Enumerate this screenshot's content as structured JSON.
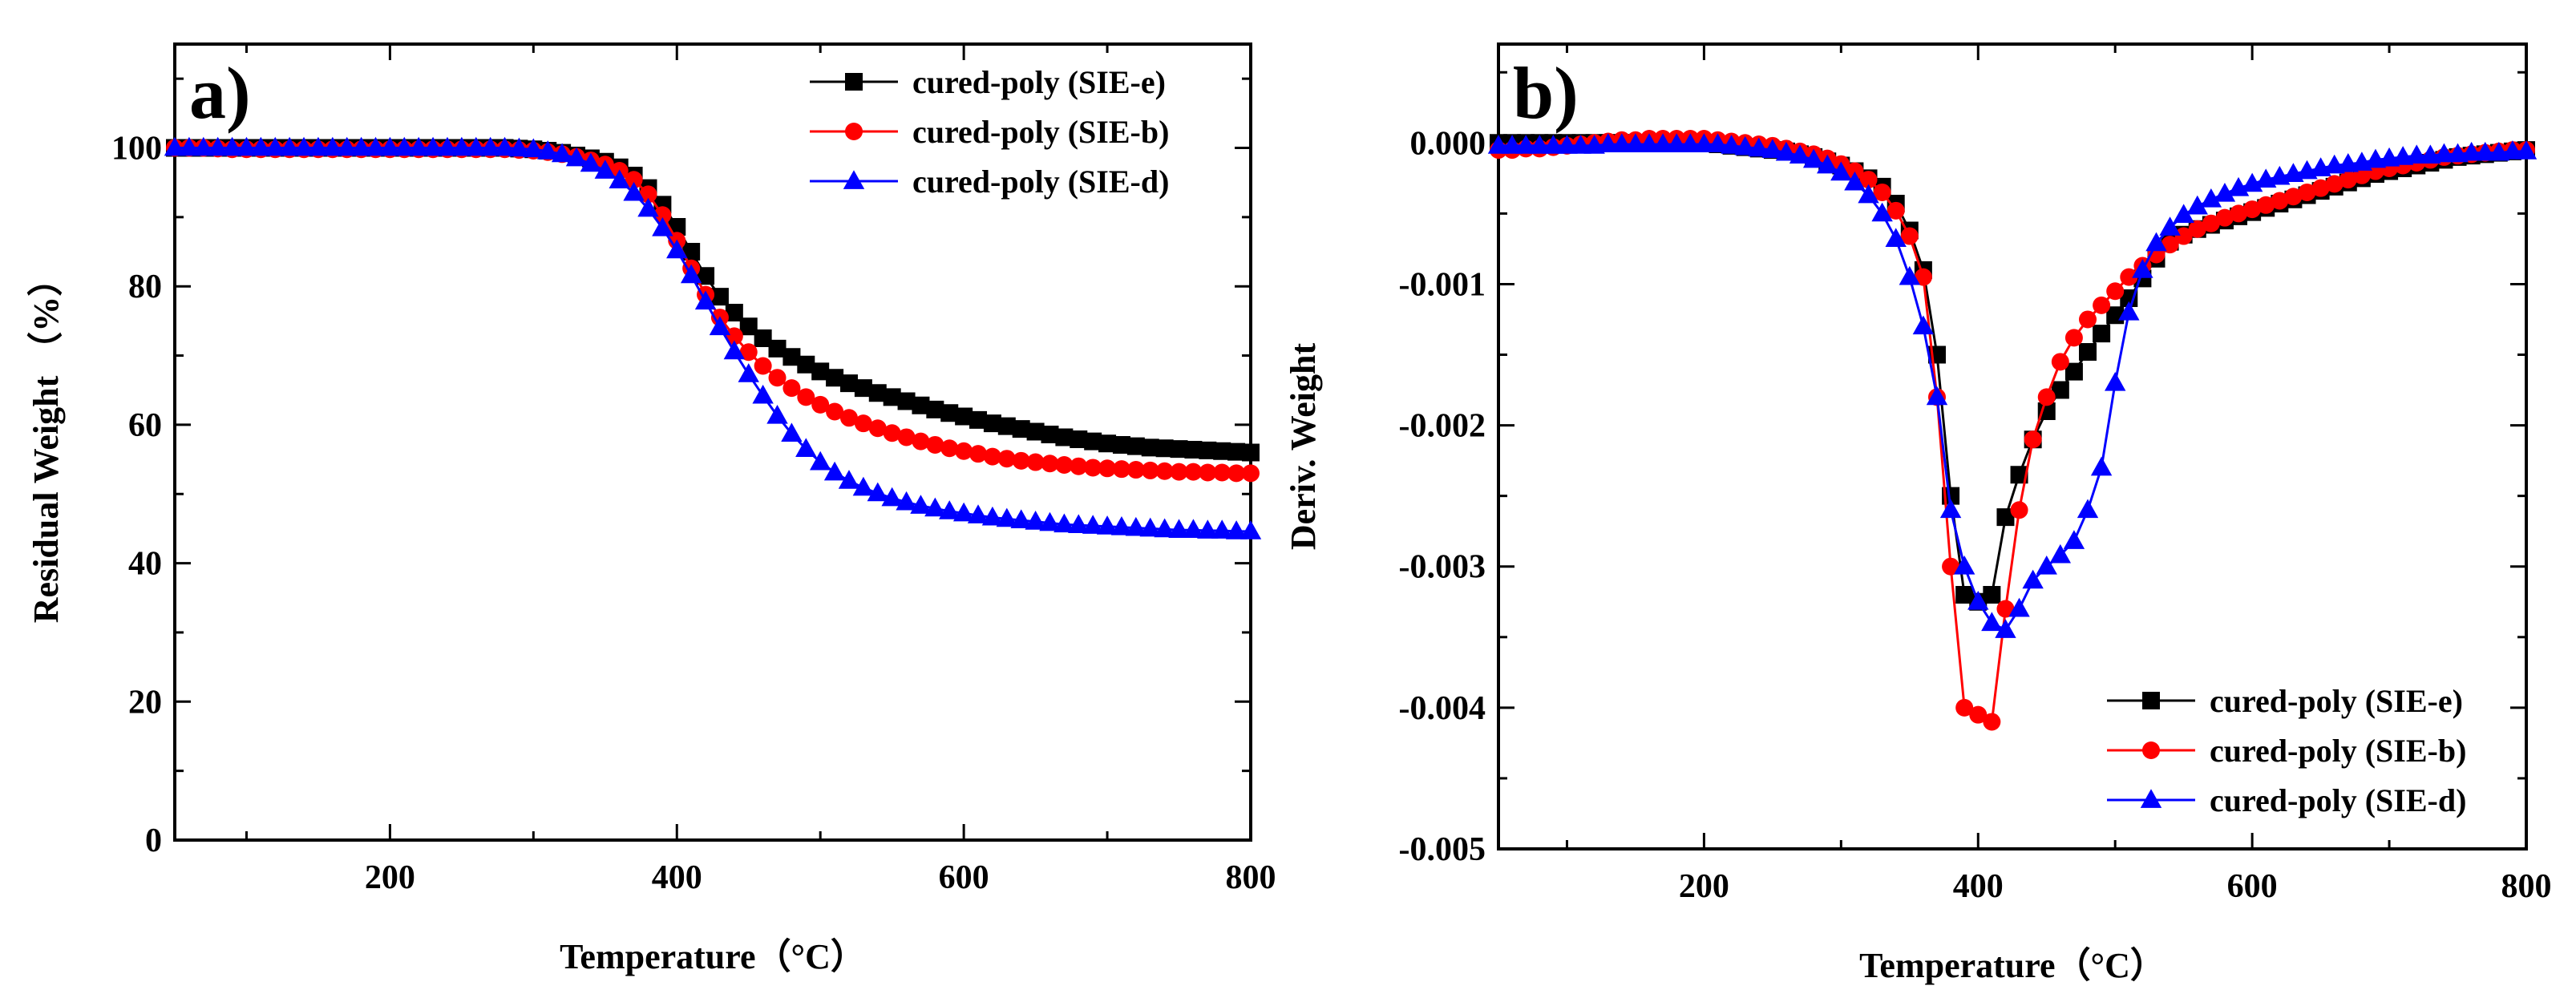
{
  "colors": {
    "black": "#000000",
    "red": "#ff0000",
    "blue": "#0000ff"
  },
  "chart_data": [
    {
      "type": "line",
      "panel_label": "a)",
      "xlabel": "Temperature（°C）",
      "ylabel": "Residual Weight （%）",
      "xlim": [
        50,
        800
      ],
      "ylim": [
        0,
        115
      ],
      "xticks": [
        200,
        400,
        600,
        800
      ],
      "yticks": [
        0,
        20,
        40,
        60,
        80,
        100
      ],
      "legend_position": "top-right",
      "x": [
        50,
        60,
        70,
        80,
        90,
        100,
        110,
        120,
        130,
        140,
        150,
        160,
        170,
        180,
        190,
        200,
        210,
        220,
        230,
        240,
        250,
        260,
        270,
        280,
        290,
        300,
        310,
        320,
        330,
        340,
        350,
        360,
        370,
        380,
        390,
        400,
        410,
        420,
        430,
        440,
        450,
        460,
        470,
        480,
        490,
        500,
        510,
        520,
        530,
        540,
        550,
        560,
        570,
        580,
        590,
        600,
        610,
        620,
        630,
        640,
        650,
        660,
        670,
        680,
        690,
        700,
        710,
        720,
        730,
        740,
        750,
        760,
        770,
        780,
        790,
        800
      ],
      "series": [
        {
          "name": "cured-poly (SIE-e)",
          "color": "#000000",
          "marker": "square",
          "values": [
            100,
            100,
            100,
            100,
            100,
            100,
            100,
            100,
            100,
            100,
            100,
            100,
            100,
            100,
            100,
            100,
            100,
            100,
            100,
            100,
            100,
            100,
            100,
            100,
            99.9,
            99.8,
            99.6,
            99.3,
            98.9,
            98.5,
            98,
            97.2,
            96,
            94.2,
            91.8,
            88.6,
            85,
            81.5,
            78.5,
            76.2,
            74.2,
            72.5,
            71,
            69.8,
            68.7,
            67.7,
            66.8,
            66,
            65.3,
            64.6,
            64,
            63.4,
            62.8,
            62.2,
            61.7,
            61.2,
            60.7,
            60.2,
            59.8,
            59.4,
            59,
            58.6,
            58.2,
            57.9,
            57.6,
            57.3,
            57.1,
            56.9,
            56.7,
            56.6,
            56.5,
            56.4,
            56.3,
            56.2,
            56.1,
            56
          ]
        },
        {
          "name": "cured-poly (SIE-b)",
          "color": "#ff0000",
          "marker": "circle",
          "values": [
            100,
            100,
            100,
            99.9,
            99.8,
            99.8,
            99.8,
            99.8,
            99.8,
            99.8,
            99.8,
            99.8,
            99.8,
            99.8,
            99.8,
            99.8,
            99.8,
            99.8,
            99.8,
            99.8,
            99.8,
            99.8,
            99.8,
            99.8,
            99.7,
            99.6,
            99.4,
            99.1,
            98.7,
            98.2,
            97.6,
            96.7,
            95.4,
            93.3,
            90.3,
            86.6,
            82.6,
            78.8,
            75.5,
            72.8,
            70.5,
            68.5,
            66.8,
            65.3,
            64,
            62.9,
            61.9,
            61,
            60.2,
            59.5,
            58.8,
            58.2,
            57.6,
            57.1,
            56.6,
            56.2,
            55.8,
            55.4,
            55.1,
            54.8,
            54.6,
            54.4,
            54.2,
            54,
            53.8,
            53.7,
            53.6,
            53.5,
            53.4,
            53.3,
            53.2,
            53.2,
            53.1,
            53.1,
            53,
            53
          ]
        },
        {
          "name": "cured-poly (SIE-d)",
          "color": "#0000ff",
          "marker": "triangle",
          "values": [
            100,
            100,
            100,
            100,
            100,
            100,
            100,
            100,
            100,
            100,
            100,
            100,
            100,
            100,
            100,
            100,
            100,
            100,
            100,
            100,
            100,
            100,
            100,
            100,
            99.9,
            99.8,
            99.5,
            99.1,
            98.5,
            97.7,
            96.7,
            95.3,
            93.5,
            91.2,
            88.4,
            85.2,
            81.6,
            77.8,
            74.1,
            70.6,
            67.3,
            64.2,
            61.3,
            58.7,
            56.5,
            54.6,
            53.1,
            51.9,
            50.9,
            50.1,
            49.4,
            48.8,
            48.3,
            47.9,
            47.5,
            47.2,
            46.9,
            46.6,
            46.4,
            46.2,
            46,
            45.8,
            45.6,
            45.5,
            45.4,
            45.3,
            45.2,
            45.1,
            45,
            44.9,
            44.8,
            44.8,
            44.7,
            44.7,
            44.6,
            44.6
          ]
        }
      ]
    },
    {
      "type": "line",
      "panel_label": "b)",
      "xlabel": "Temperature（°C）",
      "ylabel": "Deriv. Weight",
      "xlim": [
        50,
        800
      ],
      "ylim": [
        -0.005,
        0.0007
      ],
      "xticks": [
        200,
        400,
        600,
        800
      ],
      "yticks": [
        0.0,
        -0.001,
        -0.002,
        -0.003,
        -0.004,
        -0.005
      ],
      "ytick_labels": [
        "0.000",
        "-0.001",
        "-0.002",
        "-0.003",
        "-0.004",
        "-0.005"
      ],
      "legend_position": "bottom-right",
      "x": [
        50,
        60,
        70,
        80,
        90,
        100,
        110,
        120,
        130,
        140,
        150,
        160,
        170,
        180,
        190,
        200,
        210,
        220,
        230,
        240,
        250,
        260,
        270,
        280,
        290,
        300,
        310,
        320,
        330,
        340,
        350,
        360,
        370,
        380,
        390,
        400,
        410,
        420,
        430,
        440,
        450,
        460,
        470,
        480,
        490,
        500,
        510,
        520,
        530,
        540,
        550,
        560,
        570,
        580,
        590,
        600,
        610,
        620,
        630,
        640,
        650,
        660,
        670,
        680,
        690,
        700,
        710,
        720,
        730,
        740,
        750,
        760,
        770,
        780,
        790,
        800
      ],
      "series": [
        {
          "name": "cured-poly (SIE-e)",
          "color": "#000000",
          "marker": "square",
          "values": [
            0,
            0,
            0,
            0,
            0,
            0,
            0,
            0,
            0,
            0,
            0,
            0,
            0,
            0,
            0,
            0,
            -1e-05,
            -2e-05,
            -3e-05,
            -4e-05,
            -5e-05,
            -6e-05,
            -8e-05,
            -0.0001,
            -0.00013,
            -0.00016,
            -0.0002,
            -0.00025,
            -0.00031,
            -0.00043,
            -0.00062,
            -0.0009,
            -0.0015,
            -0.0025,
            -0.0032,
            -0.00325,
            -0.0032,
            -0.00265,
            -0.00235,
            -0.0021,
            -0.0019,
            -0.00175,
            -0.00162,
            -0.00148,
            -0.00135,
            -0.00122,
            -0.0011,
            -0.00096,
            -0.00082,
            -0.0007,
            -0.00065,
            -0.00061,
            -0.00058,
            -0.00055,
            -0.00052,
            -0.00049,
            -0.00046,
            -0.00043,
            -0.0004,
            -0.00037,
            -0.00034,
            -0.00031,
            -0.00028,
            -0.00025,
            -0.00022,
            -0.0002,
            -0.00018,
            -0.00016,
            -0.00014,
            -0.00012,
            -0.0001,
            -9e-05,
            -8e-05,
            -7e-05,
            -6e-05,
            -5e-05
          ]
        },
        {
          "name": "cured-poly (SIE-b)",
          "color": "#ff0000",
          "marker": "circle",
          "values": [
            -5e-05,
            -5e-05,
            -4e-05,
            -4e-05,
            -3e-05,
            -2e-05,
            -1e-05,
            0,
            1e-05,
            2e-05,
            2e-05,
            3e-05,
            3e-05,
            3e-05,
            3e-05,
            3e-05,
            2e-05,
            1e-05,
            0,
            -1e-05,
            -2e-05,
            -4e-05,
            -6e-05,
            -8e-05,
            -0.00011,
            -0.00015,
            -0.0002,
            -0.00026,
            -0.00035,
            -0.00048,
            -0.00066,
            -0.00095,
            -0.0018,
            -0.003,
            -0.004,
            -0.00405,
            -0.0041,
            -0.0033,
            -0.0026,
            -0.0021,
            -0.0018,
            -0.00155,
            -0.00138,
            -0.00125,
            -0.00115,
            -0.00105,
            -0.00095,
            -0.00087,
            -0.00079,
            -0.00072,
            -0.00066,
            -0.00061,
            -0.00057,
            -0.00053,
            -0.0005,
            -0.00047,
            -0.00044,
            -0.00041,
            -0.00038,
            -0.00035,
            -0.00032,
            -0.00029,
            -0.00026,
            -0.00023,
            -0.0002,
            -0.00018,
            -0.00016,
            -0.00014,
            -0.00012,
            -0.0001,
            -9e-05,
            -8e-05,
            -7e-05,
            -6e-05,
            -5e-05,
            -5e-05
          ]
        },
        {
          "name": "cured-poly (SIE-d)",
          "color": "#0000ff",
          "marker": "triangle",
          "values": [
            -2e-05,
            -2e-05,
            -2e-05,
            -2e-05,
            -2e-05,
            -2e-05,
            -2e-05,
            -2e-05,
            -1e-05,
            -1e-05,
            -1e-05,
            -1e-05,
            -1e-05,
            -1e-05,
            -1e-05,
            -1e-05,
            -1e-05,
            -2e-05,
            -3e-05,
            -4e-05,
            -5e-05,
            -7e-05,
            -9e-05,
            -0.00012,
            -0.00016,
            -0.00021,
            -0.00028,
            -0.00037,
            -0.0005,
            -0.00068,
            -0.00095,
            -0.0013,
            -0.0018,
            -0.0026,
            -0.003,
            -0.00325,
            -0.0034,
            -0.00345,
            -0.0033,
            -0.0031,
            -0.003,
            -0.00292,
            -0.00282,
            -0.0026,
            -0.0023,
            -0.0017,
            -0.0012,
            -0.0009,
            -0.00071,
            -0.0006,
            -0.00051,
            -0.00045,
            -0.0004,
            -0.00036,
            -0.00032,
            -0.00029,
            -0.00026,
            -0.00024,
            -0.00022,
            -0.0002,
            -0.00018,
            -0.00016,
            -0.00015,
            -0.00014,
            -0.00012,
            -0.00011,
            -0.0001,
            -9e-05,
            -9e-05,
            -8e-05,
            -8e-05,
            -7e-05,
            -7e-05,
            -7e-05,
            -6e-05,
            -6e-05
          ]
        }
      ]
    }
  ]
}
